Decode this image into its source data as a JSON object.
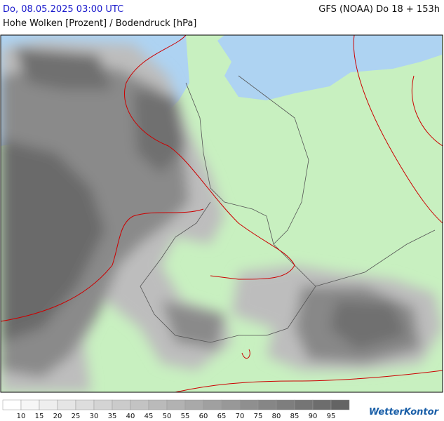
{
  "header": {
    "datetime": "Do, 08.05.2025 03:00 UTC",
    "model": "GFS (NOAA) Do 18 + 153h",
    "title": "Hohe Wolken [Prozent] / Bodendruck [hPa]"
  },
  "legend": {
    "labels": [
      10,
      15,
      20,
      25,
      30,
      35,
      40,
      45,
      50,
      55,
      60,
      65,
      70,
      75,
      80,
      85,
      90,
      95
    ]
  },
  "brand": "WetterKontor"
}
